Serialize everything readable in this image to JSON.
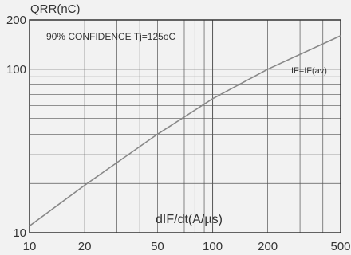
{
  "chart_data": {
    "type": "line",
    "title": "",
    "xlabel": "dIF/dt(A/µs)",
    "ylabel": "QRR(nC)",
    "annotation": "90% CONFIDENCE Tj=125oC",
    "xscale": "log",
    "yscale": "log",
    "xlim": [
      10,
      500
    ],
    "ylim": [
      10,
      200
    ],
    "x_ticks": [
      10,
      20,
      50,
      100,
      200,
      500
    ],
    "x_tick_labels": [
      "10",
      "20",
      "50",
      "100",
      "200",
      "500"
    ],
    "y_ticks": [
      10,
      100,
      200
    ],
    "y_tick_labels": [
      "10",
      "100",
      "200"
    ],
    "grid": true,
    "series": [
      {
        "name": "IF=IF(av)",
        "x": [
          10,
          20,
          50,
          100,
          200,
          500
        ],
        "y": [
          11,
          19.5,
          40,
          66,
          100,
          160
        ]
      }
    ],
    "colors": {
      "background": "#f2f2f2",
      "grid": "#555555",
      "line": "#888888",
      "text": "#333333"
    }
  }
}
